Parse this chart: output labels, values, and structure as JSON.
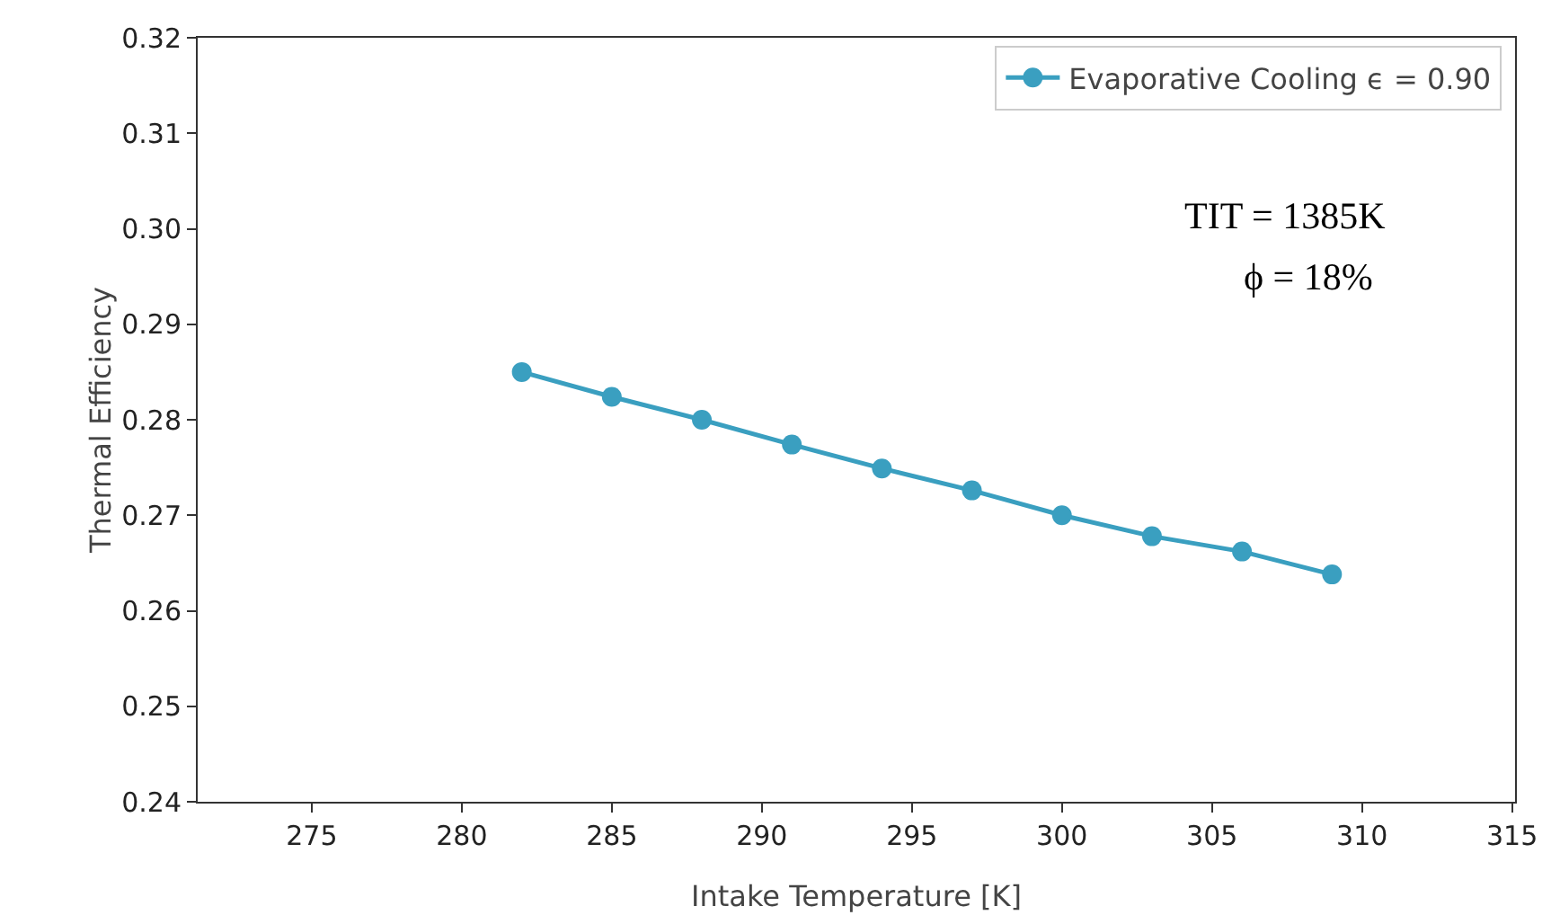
{
  "chart_data": {
    "type": "line",
    "xlabel": "Intake Temperature [K]",
    "ylabel": "Thermal Efficiency",
    "x": [
      282,
      285,
      288,
      291,
      294,
      297,
      300,
      303,
      306,
      309
    ],
    "series": [
      {
        "name": "Evaporative Cooling ϵ = 0.90",
        "color": "#3a9fc0",
        "values": [
          0.285,
          0.2824,
          0.28,
          0.2774,
          0.2749,
          0.2726,
          0.27,
          0.2678,
          0.2662,
          0.2638
        ]
      }
    ],
    "xlim": [
      271.2,
      315.1
    ],
    "xticks": [
      275,
      280,
      285,
      290,
      295,
      300,
      305,
      310,
      315
    ],
    "ylim": [
      0.24,
      0.32
    ],
    "yticks": [
      {
        "value": 0.24,
        "label": "0.24"
      },
      {
        "value": 0.25,
        "label": "0.25"
      },
      {
        "value": 0.26,
        "label": "0.26"
      },
      {
        "value": 0.27,
        "label": "0.27"
      },
      {
        "value": 0.28,
        "label": "0.28"
      },
      {
        "value": 0.29,
        "label": "0.29"
      },
      {
        "value": 0.3,
        "label": "0.30"
      },
      {
        "value": 0.31,
        "label": "0.31"
      },
      {
        "value": 0.32,
        "label": "0.32"
      }
    ],
    "annotations": [
      "TIT = 1385K",
      "ϕ = 18%"
    ],
    "grid": false,
    "legend": "top right",
    "marker": "circle",
    "line_style": "solid"
  }
}
